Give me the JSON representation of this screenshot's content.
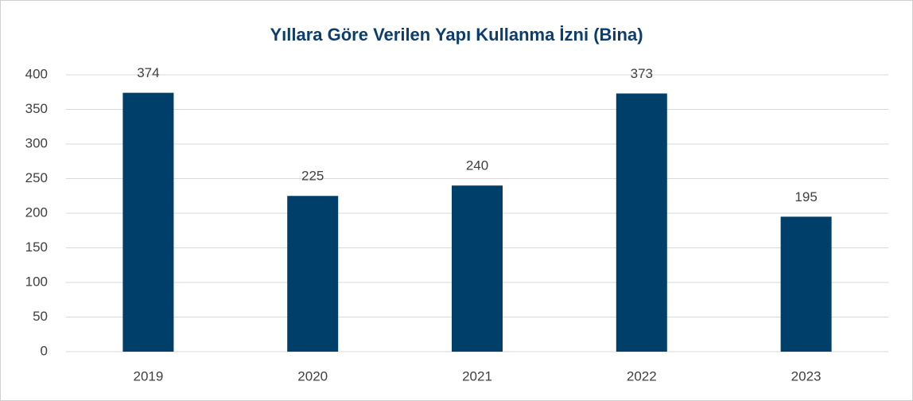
{
  "chart_data": {
    "type": "bar",
    "title": "Yıllara Göre Verilen Yapı Kullanma İzni (Bina)",
    "categories": [
      "2019",
      "2020",
      "2021",
      "2022",
      "2023"
    ],
    "values": [
      374,
      225,
      240,
      373,
      195
    ],
    "color": "#003f69",
    "ylim": [
      0,
      400
    ],
    "yticks": [
      0,
      50,
      100,
      150,
      200,
      250,
      300,
      350,
      400
    ],
    "grid": true
  }
}
